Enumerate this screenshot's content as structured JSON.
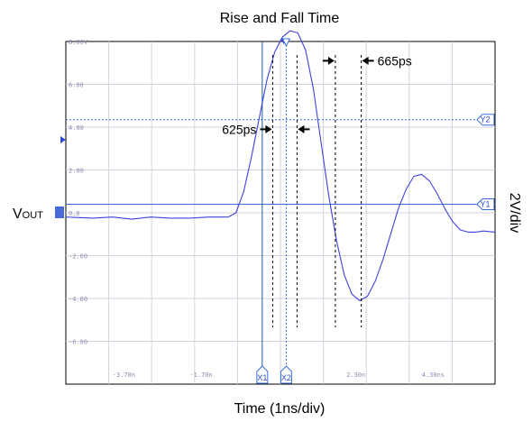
{
  "chart_data": {
    "type": "line",
    "title": "Rise and Fall Time",
    "xlabel": "Time (1ns/div)",
    "ylabel": "2V/div",
    "signal_label": {
      "main": "V",
      "sub": "OUT"
    },
    "xlim": [
      -5.2,
      5.9
    ],
    "ylim": [
      -8.0,
      8.0
    ],
    "x_tick_labels": [
      {
        "x": -3.7,
        "label": "-3.70n"
      },
      {
        "x": -1.7,
        "label": "-1.70n"
      },
      {
        "x": 2.3,
        "label": "2.30n"
      },
      {
        "x": 4.3,
        "label": "4.30ns"
      }
    ],
    "y_tick_labels": [
      {
        "y": 8.0,
        "label": "8.00V"
      },
      {
        "y": 6.0,
        "label": "6.00"
      },
      {
        "y": 4.0,
        "label": "4.00"
      },
      {
        "y": 2.0,
        "label": "2.00"
      },
      {
        "y": 0.0,
        "label": "0.0"
      },
      {
        "y": -2.0,
        "label": "-2.00"
      },
      {
        "y": -4.0,
        "label": "-4.00"
      },
      {
        "y": -6.0,
        "label": "-6.00"
      }
    ],
    "grid": true,
    "series": [
      {
        "color": "#4040e0",
        "x": [
          -5.2,
          -4.5,
          -4.0,
          -3.5,
          -3.0,
          -2.5,
          -2.0,
          -1.5,
          -1.0,
          -0.8,
          -0.6,
          -0.4,
          -0.2,
          0.0,
          0.2,
          0.4,
          0.6,
          0.8,
          1.0,
          1.2,
          1.4,
          1.6,
          1.8,
          2.0,
          2.2,
          2.4,
          2.6,
          2.8,
          3.0,
          3.2,
          3.4,
          3.6,
          3.8,
          4.0,
          4.2,
          4.4,
          4.6,
          4.8,
          5.0,
          5.2,
          5.4,
          5.6,
          5.9
        ],
        "y": [
          -0.2,
          -0.25,
          -0.2,
          -0.3,
          -0.2,
          -0.25,
          -0.25,
          -0.2,
          -0.2,
          0.0,
          1.0,
          2.6,
          4.4,
          6.2,
          7.5,
          8.2,
          8.5,
          8.4,
          7.6,
          5.8,
          3.3,
          0.8,
          -1.3,
          -2.9,
          -3.8,
          -4.1,
          -3.9,
          -3.2,
          -2.2,
          -1.0,
          0.2,
          1.1,
          1.7,
          1.8,
          1.5,
          0.9,
          0.2,
          -0.4,
          -0.8,
          -0.9,
          -0.9,
          -0.85,
          -0.9
        ]
      }
    ],
    "markers": {
      "h1": {
        "label": "Y1",
        "y": 0.4
      },
      "h2": {
        "label": "Y2",
        "y": 4.35
      },
      "v1": {
        "label": "X1",
        "x": -0.12
      },
      "v2": {
        "label": "X2",
        "x": 0.5
      }
    },
    "annotations": [
      {
        "label": "625ps",
        "x1": 0.15,
        "x2": 0.78,
        "y": 3.9
      },
      {
        "label": "665ps",
        "x1": 1.77,
        "x2": 2.44,
        "y": 7.1
      }
    ]
  }
}
